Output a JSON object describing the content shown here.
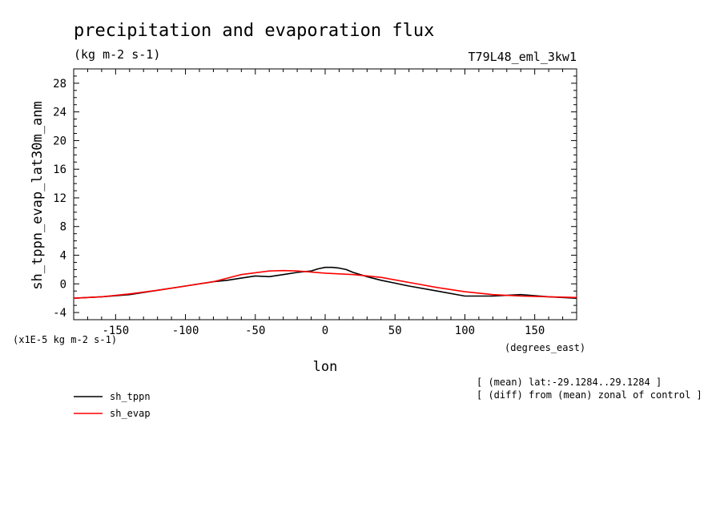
{
  "chart_data": {
    "type": "line",
    "title": "precipitation and evaporation flux",
    "units": "(kg m-2 s-1)",
    "run_label": "T79L48_eml_3kw1",
    "ylabel": "sh_tppn_evap_lat30m_anm",
    "xlabel": "lon",
    "x_units": "(degrees_east)",
    "y_scale_label": "(x1E-5 kg m-2 s-1)",
    "xlim": [
      -180,
      180
    ],
    "ylim": [
      -5,
      30
    ],
    "x_ticks": [
      -150,
      -100,
      -50,
      0,
      50,
      100,
      150
    ],
    "x_tick_labels": [
      "-150",
      "-100",
      "-50",
      "0",
      "50",
      "100",
      "150"
    ],
    "y_ticks": [
      -4,
      0,
      4,
      8,
      12,
      16,
      20,
      24,
      28
    ],
    "y_tick_labels": [
      "-4",
      "0",
      "4",
      "8",
      "12",
      "16",
      "20",
      "24",
      "28"
    ],
    "grid": false,
    "notes": [
      "[ (mean) lat:-29.1284..29.1284 ]",
      "[ (diff) from (mean) zonal of control ]"
    ],
    "series": [
      {
        "name": "sh_tppn",
        "color": "#000000",
        "x": [
          -180,
          -160,
          -140,
          -120,
          -100,
          -80,
          -70,
          -60,
          -50,
          -40,
          -30,
          -20,
          -10,
          -5,
          0,
          5,
          10,
          15,
          20,
          30,
          40,
          50,
          60,
          80,
          100,
          120,
          140,
          160,
          180
        ],
        "y": [
          -2.0,
          -1.8,
          -1.5,
          -0.9,
          -0.3,
          0.3,
          0.5,
          0.8,
          1.1,
          1.0,
          1.3,
          1.6,
          1.8,
          2.1,
          2.3,
          2.3,
          2.2,
          2.0,
          1.6,
          1.0,
          0.5,
          0.1,
          -0.3,
          -1.0,
          -1.7,
          -1.7,
          -1.5,
          -1.8,
          -2.0
        ]
      },
      {
        "name": "sh_evap",
        "color": "#ff0000",
        "x": [
          -180,
          -160,
          -140,
          -120,
          -100,
          -80,
          -60,
          -40,
          -30,
          -20,
          0,
          20,
          40,
          60,
          80,
          100,
          120,
          140,
          160,
          180
        ],
        "y": [
          -2.0,
          -1.8,
          -1.4,
          -0.9,
          -0.3,
          0.3,
          1.3,
          1.8,
          1.85,
          1.8,
          1.5,
          1.3,
          0.9,
          0.2,
          -0.5,
          -1.1,
          -1.5,
          -1.7,
          -1.8,
          -1.9
        ]
      }
    ],
    "legend_placement": "bottom-left"
  }
}
